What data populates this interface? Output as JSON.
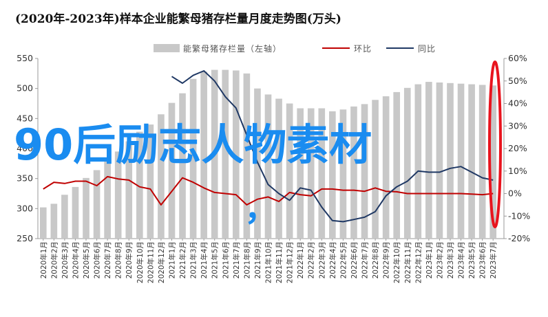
{
  "chart_data": {
    "type": "bar",
    "title": "(2020年-2023年)样本企业能繁母猪存栏量月度走势图(万头)",
    "categories": [
      "2020年1月",
      "2020年2月",
      "2020年3月",
      "2020年4月",
      "2020年5月",
      "2020年6月",
      "2020年7月",
      "2020年8月",
      "2020年9月",
      "2020年10月",
      "2020年11月",
      "2020年12月",
      "2021年1月",
      "2021年2月",
      "2021年3月",
      "2021年4月",
      "2021年5月",
      "2021年6月",
      "2021年7月",
      "2021年8月",
      "2021年9月",
      "2021年10月",
      "2021年11月",
      "2021年12月",
      "2022年1月",
      "2022年2月",
      "2022年3月",
      "2022年4月",
      "2022年5月",
      "2022年6月",
      "2022年7月",
      "2022年8月",
      "2022年9月",
      "2022年10月",
      "2022年11月",
      "2022年12月",
      "2023年1月",
      "2023年2月",
      "2023年3月",
      "2023年4月",
      "2023年5月",
      "2023年6月",
      "2023年7月"
    ],
    "series": [
      {
        "name": "能繁母猪存栏量（左轴）",
        "type": "bar",
        "axis": "left",
        "color": "#c8c8c8",
        "values": [
          302,
          308,
          323,
          336,
          351,
          364,
          379,
          395,
          412,
          428,
          440,
          457,
          476,
          492,
          516,
          528,
          531,
          531,
          530,
          525,
          500,
          490,
          483,
          475,
          467,
          467,
          467,
          462,
          465,
          470,
          474,
          481,
          487,
          494,
          501,
          507,
          511,
          510,
          509,
          508,
          507,
          506,
          505
        ]
      },
      {
        "name": "环比",
        "type": "line",
        "axis": "right",
        "color": "#c00000",
        "values": [
          2,
          5,
          4.5,
          5.5,
          5.5,
          3.5,
          7.5,
          6.5,
          6,
          3,
          2,
          -5,
          1,
          7,
          5,
          2.5,
          0.5,
          0,
          -0.5,
          -5,
          -2.5,
          -1.5,
          -3.5,
          0.5,
          -0.5,
          -1,
          2,
          2,
          1.5,
          1.5,
          1,
          2.5,
          1,
          0.8,
          0,
          0,
          0,
          0,
          0,
          0,
          -0.2,
          -0.5,
          0
        ]
      },
      {
        "name": "同比",
        "type": "line",
        "axis": "right",
        "color": "#1f3864",
        "values": [
          null,
          null,
          null,
          null,
          null,
          null,
          null,
          null,
          null,
          null,
          null,
          null,
          52,
          49,
          52.5,
          54.5,
          50,
          43,
          38,
          26,
          14,
          4,
          0,
          -3,
          2.5,
          1.5,
          -6,
          -12,
          -12.5,
          -11.5,
          -10.5,
          -8,
          -1,
          3,
          5.5,
          10,
          9.5,
          9.5,
          11.2,
          12,
          9.5,
          7,
          6
        ]
      }
    ],
    "y_left": {
      "min": 250,
      "max": 550,
      "step": 50,
      "ticks": [
        "250",
        "300",
        "350",
        "400",
        "450",
        "500",
        "550"
      ]
    },
    "y_right": {
      "min": -20,
      "max": 60,
      "step": 10,
      "ticks": [
        "-20%",
        "-10%",
        "0%",
        "10%",
        "20%",
        "30%",
        "40%",
        "50%",
        "60%"
      ]
    },
    "legend_placement": "top",
    "grid": false
  },
  "overlay_text": "90后励志人物素材",
  "overlay_comma": "，",
  "colors": {
    "highlight_ellipse": "#e8141e",
    "overlay_text": "#1a8cf0"
  }
}
